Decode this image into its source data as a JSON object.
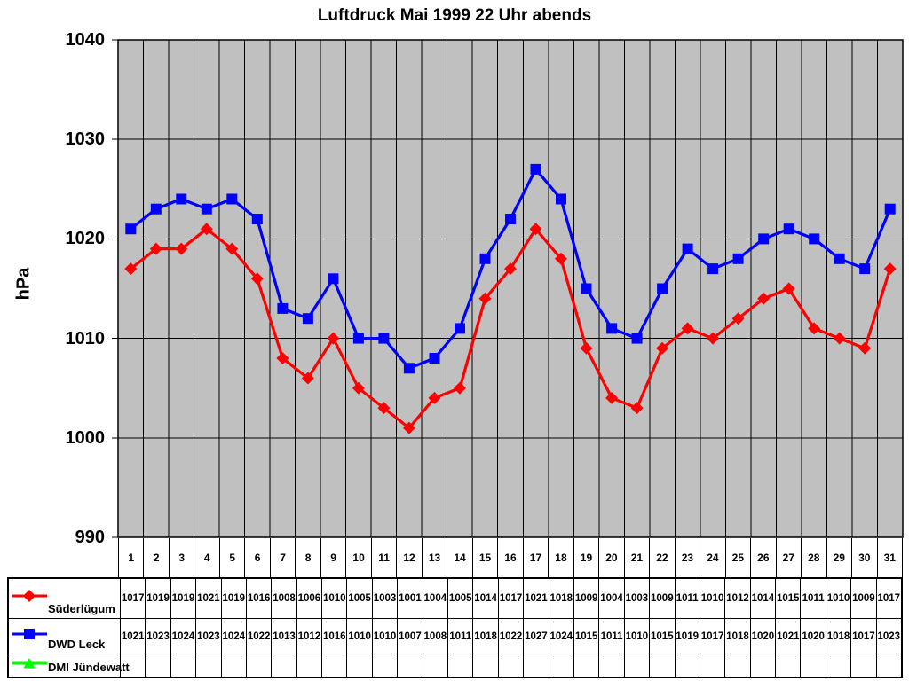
{
  "chart_data": {
    "type": "line",
    "title": "Luftdruck Mai 1999 22 Uhr abends",
    "ylabel": "hPa",
    "ylim": [
      990,
      1040
    ],
    "ytick_step": 10,
    "grid": "vertical-per-day-and-horizontal-per-10hPa",
    "plot_bg": "#c0c0c0",
    "gridline_color": "#000000",
    "legend_position": "data-table-left",
    "categories": [
      1,
      2,
      3,
      4,
      5,
      6,
      7,
      8,
      9,
      10,
      11,
      12,
      13,
      14,
      15,
      16,
      17,
      18,
      19,
      20,
      21,
      22,
      23,
      24,
      25,
      26,
      27,
      28,
      29,
      30,
      31
    ],
    "series": [
      {
        "name": "Süderlügum",
        "color": "#ff0000",
        "marker": "diamond",
        "values": [
          1017,
          1019,
          1019,
          1021,
          1019,
          1016,
          1008,
          1006,
          1010,
          1005,
          1003,
          1001,
          1004,
          1005,
          1014,
          1017,
          1021,
          1018,
          1009,
          1004,
          1003,
          1009,
          1011,
          1010,
          1012,
          1014,
          1015,
          1011,
          1010,
          1009,
          1017
        ]
      },
      {
        "name": "DWD Leck",
        "color": "#0000ff",
        "marker": "square",
        "values": [
          1021,
          1023,
          1024,
          1023,
          1024,
          1022,
          1013,
          1012,
          1016,
          1010,
          1010,
          1007,
          1008,
          1011,
          1018,
          1022,
          1027,
          1024,
          1015,
          1011,
          1010,
          1015,
          1019,
          1017,
          1018,
          1020,
          1021,
          1020,
          1018,
          1017,
          1023
        ]
      },
      {
        "name": "DMI Jündewatt",
        "color": "#00ff00",
        "marker": "triangle",
        "values": []
      }
    ]
  }
}
